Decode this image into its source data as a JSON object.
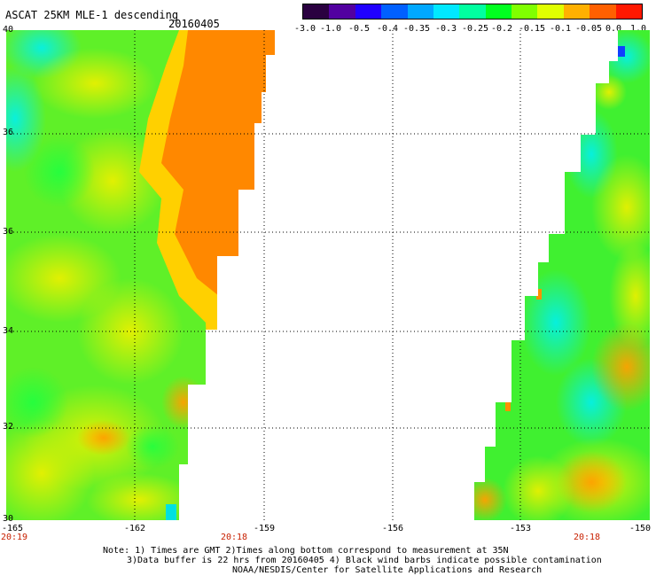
{
  "header": {
    "title": "ASCAT 25KM MLE-1 descending",
    "date": "20160405"
  },
  "colorbar": {
    "ticks": [
      "-3.0",
      "-1.0",
      "-0.5",
      "-0.4",
      "-0.35",
      "-0.3",
      "-0.25",
      "-0.2",
      "-0.15",
      "-0.1",
      "-0.05",
      "0.0",
      "1.0"
    ],
    "colors": [
      "#2a0040",
      "#5200a0",
      "#2000ff",
      "#0060ff",
      "#00a8ff",
      "#00e8ff",
      "#00ffa0",
      "#00ff20",
      "#80ff00",
      "#e0ff00",
      "#ffb000",
      "#ff6000",
      "#ff1800"
    ]
  },
  "map": {
    "y_ticks": [
      "40",
      "36",
      "36",
      "34",
      "32",
      "30"
    ],
    "x_ticks": [
      "-165",
      "-162",
      "-159",
      "-156",
      "-153",
      "-150"
    ],
    "time_labels": [
      "20:19",
      "20:18",
      "20:18"
    ]
  },
  "notes": {
    "line1": "Note: 1) Times are GMT 2)Times along bottom correspond to measurement at 35N",
    "line2": "3)Data buffer is 22 hrs from 20160405 4) Black wind barbs indicate possible contamination",
    "line3": "NOAA/NESDIS/Center for Satellite Applications and Research"
  }
}
